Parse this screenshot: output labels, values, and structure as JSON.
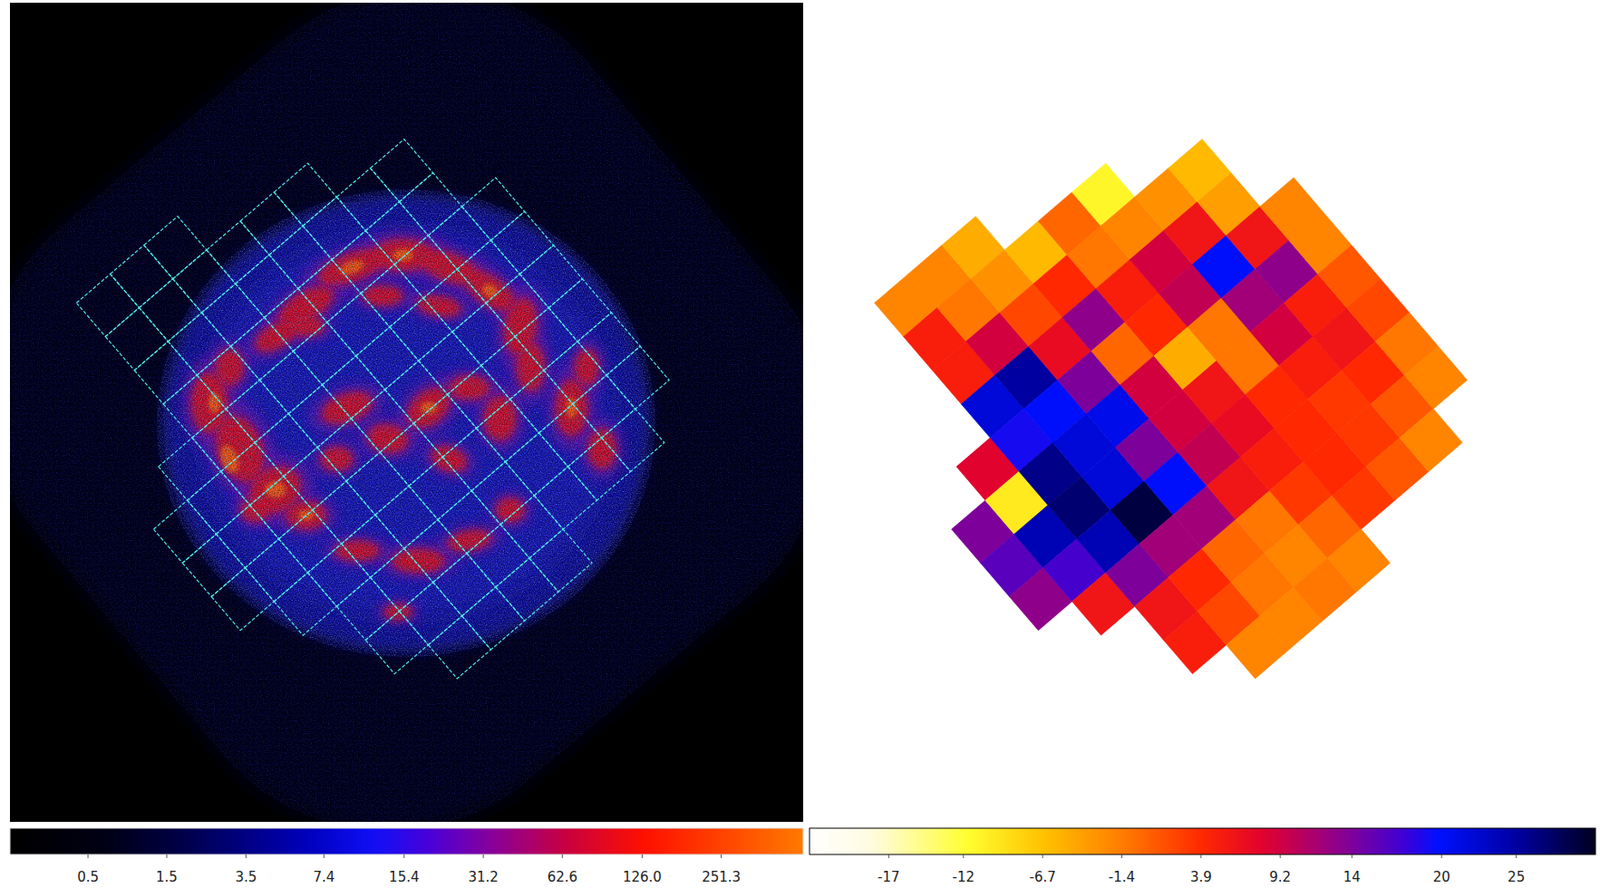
{
  "chart_data": [
    {
      "type": "image",
      "log": true,
      "colorbar_range": [
        0,
        514
      ],
      "colorbar_ticks": [
        0.5,
        1.5,
        3.5,
        7.4,
        15.4,
        31.2,
        62.6,
        {
          "value": 126,
          "label": "126.0"
        },
        251.3
      ]
    },
    {
      "type": "heatmap",
      "values": [
        [
          null,
          null,
          -2,
          -2,
          -5,
          null,
          null,
          null,
          null,
          null,
          null
        ],
        [
          null,
          null,
          5,
          -1,
          -3,
          -6,
          0,
          -11,
          null,
          null,
          null
        ],
        [
          null,
          null,
          5,
          9,
          2,
          4,
          -1,
          -2,
          -3,
          -6,
          null
        ],
        [
          null,
          null,
          22,
          25,
          7,
          13,
          5,
          9,
          6,
          -4,
          null
        ],
        [
          null,
          8,
          19,
          20,
          14,
          0,
          4,
          10,
          20,
          6,
          -2
        ],
        [
          14,
          -10,
          26,
          22,
          21,
          9,
          -5,
          -1,
          12,
          13,
          -2
        ],
        [
          16,
          24,
          27,
          22,
          14,
          9,
          6,
          -1,
          9,
          5,
          1
        ],
        [
          13,
          17,
          24,
          29,
          20,
          10,
          7,
          4,
          5,
          6,
          2
        ],
        [
          null,
          6,
          14,
          12,
          12,
          6,
          5,
          4,
          3,
          4,
          -1
        ],
        [
          null,
          null,
          6,
          4,
          0,
          -1,
          3,
          4,
          3,
          1,
          -2
        ],
        [
          null,
          null,
          5,
          2,
          -1,
          -2,
          0,
          3,
          1,
          -2,
          null
        ],
        [
          null,
          null,
          null,
          -2,
          -2,
          -1,
          -2,
          null,
          null,
          null,
          null
        ]
      ],
      "colorbar_range": [
        -22.3,
        30.3
      ],
      "colorbar_ticks": [
        -17,
        -12,
        -6.7,
        -1.4,
        3.9,
        9.2,
        14,
        20,
        25
      ]
    }
  ]
}
